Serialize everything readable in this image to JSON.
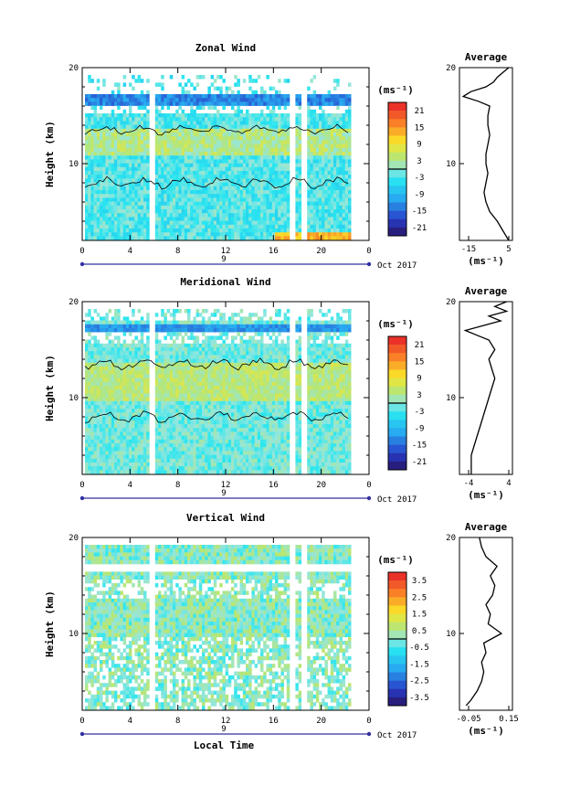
{
  "chart_data": [
    {
      "type": "heatmap",
      "id": "zonal",
      "title": "Zonal Wind",
      "ylabel": "Height (km)",
      "xlabel": "",
      "xlim": [
        0,
        24
      ],
      "ylim": [
        2,
        20
      ],
      "x_ticks": [
        "0",
        "4",
        "8",
        "12",
        "16",
        "20",
        "0"
      ],
      "y_ticks": [
        "20",
        "10"
      ],
      "date_label": "Oct 2017",
      "day_label": "9",
      "colorbar": {
        "unit": "(ms⁻¹)",
        "min": -24,
        "max": 24,
        "ticks": [
          "21",
          "15",
          "9",
          "3",
          "-3",
          "-9",
          "-15",
          "-21"
        ]
      },
      "average_panel": {
        "title": "Average",
        "xlabel": "(ms⁻¹)",
        "xlim": [
          -20,
          8
        ],
        "x_ticks": [
          "-15",
          "5"
        ],
        "y_ticks": [
          "20",
          "10"
        ],
        "profile": {
          "height": [
            2,
            3,
            4,
            5,
            6,
            7,
            8,
            9,
            10,
            11,
            12,
            13,
            14,
            15,
            16,
            16.5,
            17,
            17.5,
            18,
            18.5,
            19,
            19.5,
            20
          ],
          "value": [
            6,
            3,
            0,
            -4,
            -6,
            -7,
            -6,
            -5,
            -6,
            -6,
            -5,
            -4,
            -5,
            -5,
            -4,
            -10,
            -18,
            -14,
            -6,
            -2,
            0,
            3,
            6
          ]
        }
      }
    },
    {
      "type": "heatmap",
      "id": "meridional",
      "title": "Meridional Wind",
      "ylabel": "Height (km)",
      "xlabel": "",
      "xlim": [
        0,
        24
      ],
      "ylim": [
        2,
        20
      ],
      "x_ticks": [
        "0",
        "4",
        "8",
        "12",
        "16",
        "20",
        "0"
      ],
      "y_ticks": [
        "20",
        "10"
      ],
      "date_label": "Oct 2017",
      "day_label": "9",
      "colorbar": {
        "unit": "(ms⁻¹)",
        "min": -24,
        "max": 24,
        "ticks": [
          "21",
          "15",
          "9",
          "3",
          "-3",
          "-9",
          "-15",
          "-21"
        ]
      },
      "average_panel": {
        "title": "Average",
        "xlabel": "(ms⁻¹)",
        "xlim": [
          -5,
          4
        ],
        "x_ticks": [
          "-4",
          "4"
        ],
        "y_ticks": [
          "20",
          "10"
        ],
        "profile": {
          "height": [
            2,
            3,
            4,
            5,
            6,
            7,
            8,
            9,
            10,
            11,
            12,
            13,
            14,
            15,
            16,
            16.5,
            17,
            17.5,
            18,
            18.5,
            19,
            19.5,
            20
          ],
          "value": [
            -3,
            -3,
            -3,
            -2.5,
            -2,
            -1.5,
            -1,
            -0.5,
            0,
            0.5,
            1,
            0.5,
            0,
            1,
            0,
            -2,
            -4,
            -1,
            2,
            0,
            3,
            1,
            3
          ]
        }
      }
    },
    {
      "type": "heatmap",
      "id": "vertical",
      "title": "Vertical Wind",
      "ylabel": "Height (km)",
      "xlabel": "Local Time",
      "xlim": [
        0,
        24
      ],
      "ylim": [
        2,
        20
      ],
      "x_ticks": [
        "0",
        "4",
        "8",
        "12",
        "16",
        "20",
        "0"
      ],
      "y_ticks": [
        "20",
        "10"
      ],
      "date_label": "Oct 2017",
      "day_label": "9",
      "colorbar": {
        "unit": "(ms⁻¹)",
        "min": -4,
        "max": 4,
        "ticks": [
          "3.5",
          "2.5",
          "1.5",
          "0.5",
          "-0.5",
          "-1.5",
          "-2.5",
          "-3.5"
        ]
      },
      "average_panel": {
        "title": "Average",
        "xlabel": "(ms⁻¹)",
        "xlim": [
          -0.08,
          0.16
        ],
        "x_ticks": [
          "-0.05",
          "0.15"
        ],
        "y_ticks": [
          "20",
          "10"
        ],
        "profile": {
          "height": [
            2.5,
            3,
            4,
            5,
            6,
            7,
            8,
            9,
            10,
            11,
            12,
            13,
            14,
            15,
            16,
            17,
            18,
            19,
            20
          ],
          "value": [
            -0.05,
            -0.03,
            0.0,
            0.02,
            0.03,
            0.02,
            0.04,
            0.03,
            0.11,
            0.05,
            0.06,
            0.04,
            0.07,
            0.08,
            0.06,
            0.09,
            0.04,
            0.02,
            0.01
          ]
        }
      }
    }
  ]
}
